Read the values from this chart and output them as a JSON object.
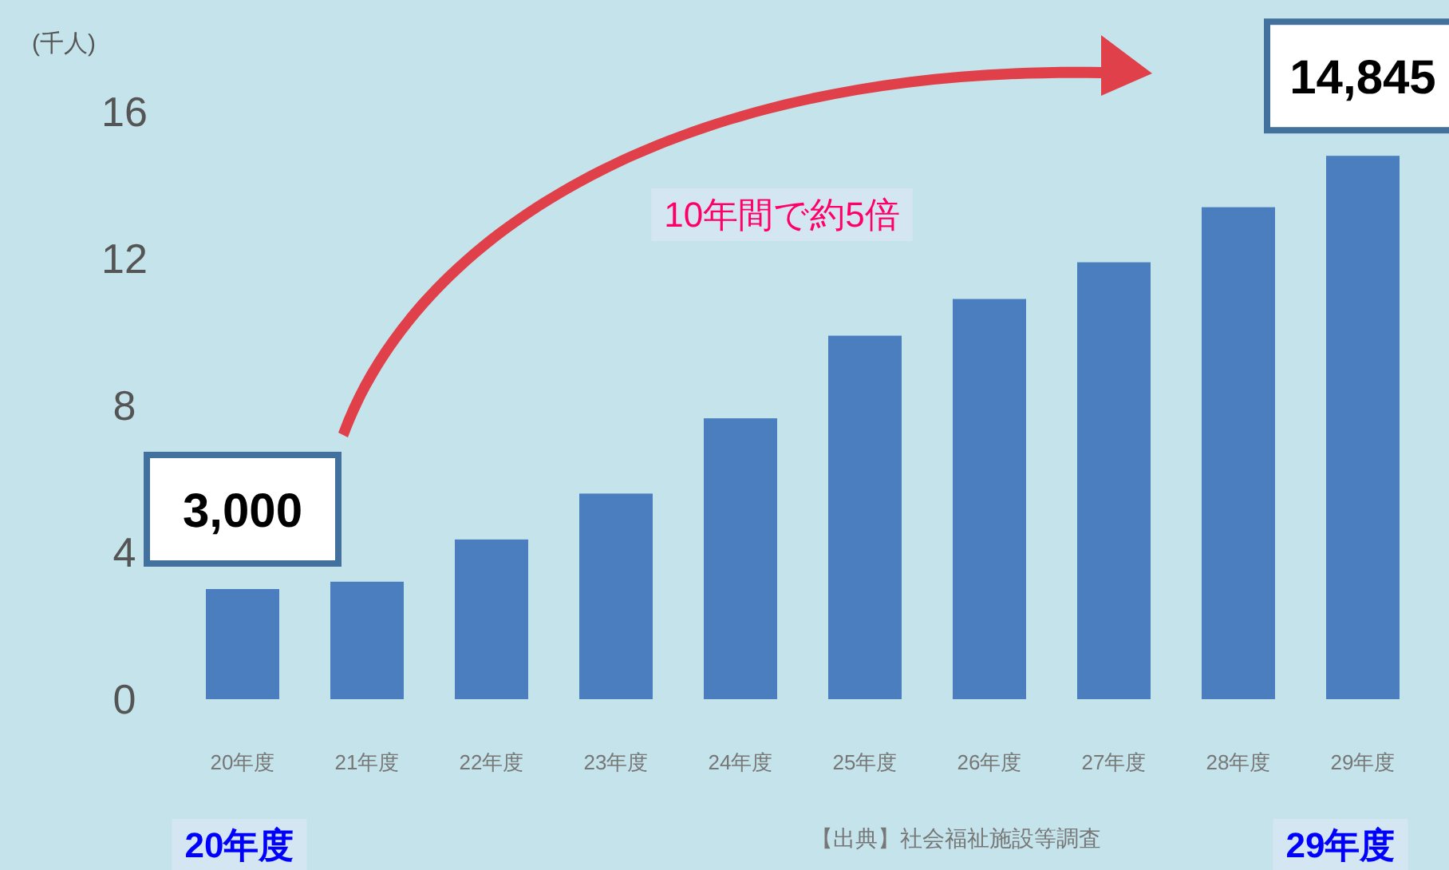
{
  "chart_data": {
    "type": "bar",
    "ylabel": "(千人)",
    "categories": [
      "20年度",
      "21年度",
      "22年度",
      "23年度",
      "24年度",
      "25年度",
      "26年度",
      "27年度",
      "28年度",
      "29年度"
    ],
    "values": [
      3.0,
      3.2,
      4.35,
      5.6,
      7.65,
      9.9,
      10.9,
      11.9,
      13.4,
      14.8
    ],
    "color": "#4a7ebf",
    "ylim": [
      0,
      16
    ],
    "yticks": [
      0,
      4,
      8,
      12,
      16
    ],
    "annotations": [
      "10年間で約5倍",
      "20年度",
      "29年度",
      "【出典】社会福祉施設等調査",
      {
        "text": "3,000",
        "x": "20年度",
        "y": 3.0
      },
      {
        "text": "14,845",
        "x": "29年度",
        "y": 14.8
      }
    ]
  }
}
